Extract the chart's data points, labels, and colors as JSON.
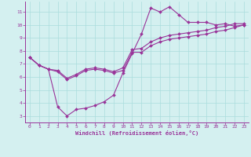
{
  "xlabel": "Windchill (Refroidissement éolien,°C)",
  "xlim": [
    -0.5,
    23.5
  ],
  "ylim": [
    2.5,
    11.8
  ],
  "yticks": [
    3,
    4,
    5,
    6,
    7,
    8,
    9,
    10,
    11
  ],
  "xticks": [
    0,
    1,
    2,
    3,
    4,
    5,
    6,
    7,
    8,
    9,
    10,
    11,
    12,
    13,
    14,
    15,
    16,
    17,
    18,
    19,
    20,
    21,
    22,
    23
  ],
  "color": "#993399",
  "bg_color": "#d4f0f0",
  "grid_color": "#aadddd",
  "line1_x": [
    0,
    1,
    2,
    3,
    4,
    5,
    6,
    7,
    8,
    9,
    10,
    11,
    12,
    13,
    14,
    15,
    16,
    17,
    18,
    19,
    20,
    21,
    22,
    23
  ],
  "line1_y": [
    7.5,
    6.9,
    6.6,
    3.7,
    3.0,
    3.5,
    3.6,
    3.8,
    4.1,
    4.6,
    6.3,
    7.8,
    9.3,
    11.3,
    11.0,
    11.4,
    10.8,
    10.2,
    10.2,
    10.2,
    10.0,
    10.1,
    9.9,
    10.0
  ],
  "line2_x": [
    0,
    1,
    2,
    3,
    4,
    5,
    6,
    7,
    8,
    9,
    10,
    11,
    12,
    13,
    14,
    15,
    16,
    17,
    18,
    19,
    20,
    21,
    22,
    23
  ],
  "line2_y": [
    7.5,
    6.9,
    6.6,
    6.4,
    5.8,
    6.1,
    6.5,
    6.6,
    6.5,
    6.3,
    6.5,
    7.9,
    7.9,
    8.4,
    8.7,
    8.9,
    9.0,
    9.1,
    9.2,
    9.3,
    9.5,
    9.6,
    9.8,
    10.0
  ],
  "line3_x": [
    0,
    1,
    2,
    3,
    4,
    5,
    6,
    7,
    8,
    9,
    10,
    11,
    12,
    13,
    14,
    15,
    16,
    17,
    18,
    19,
    20,
    21,
    22,
    23
  ],
  "line3_y": [
    7.5,
    6.9,
    6.6,
    6.5,
    5.9,
    6.2,
    6.6,
    6.7,
    6.6,
    6.4,
    6.7,
    8.1,
    8.2,
    8.7,
    9.0,
    9.2,
    9.3,
    9.4,
    9.5,
    9.6,
    9.8,
    9.9,
    10.1,
    10.1
  ]
}
